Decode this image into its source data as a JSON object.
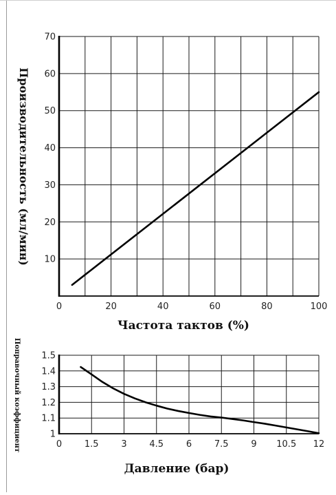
{
  "chart_data": [
    {
      "type": "line",
      "title": "",
      "xlabel": "Частота тактов (%)",
      "ylabel": "Производительность (мл/мин)",
      "xlim": [
        0,
        100
      ],
      "ylim": [
        0,
        70
      ],
      "xticks": [
        0,
        20,
        40,
        60,
        80,
        100
      ],
      "yticks": [
        10,
        20,
        30,
        40,
        50,
        60,
        70
      ],
      "grid": true,
      "series": [
        {
          "name": "",
          "x": [
            5,
            100
          ],
          "y": [
            3,
            55
          ]
        }
      ]
    },
    {
      "type": "line",
      "title": "",
      "xlabel": "Давление (бар)",
      "ylabel": "Поправочный коэффициент",
      "xlim": [
        0,
        12
      ],
      "ylim": [
        1.0,
        1.5
      ],
      "xticks": [
        0,
        1.5,
        3,
        4.5,
        6,
        7.5,
        9,
        10.5,
        12
      ],
      "yticks": [
        1.0,
        1.1,
        1.2,
        1.3,
        1.4,
        1.5
      ],
      "grid": true,
      "series": [
        {
          "name": "",
          "x": [
            1.0,
            1.5,
            2.0,
            2.5,
            3.0,
            3.5,
            4.0,
            4.5,
            5.0,
            5.5,
            6.0,
            6.5,
            7.0,
            7.5,
            8.0,
            8.5,
            9.0,
            9.5,
            10.0,
            10.5,
            11.0,
            11.5,
            12.0
          ],
          "y": [
            1.425,
            1.378,
            1.33,
            1.289,
            1.254,
            1.225,
            1.2,
            1.179,
            1.16,
            1.145,
            1.132,
            1.12,
            1.11,
            1.103,
            1.094,
            1.085,
            1.074,
            1.064,
            1.052,
            1.04,
            1.028,
            1.016,
            1.003
          ]
        }
      ]
    }
  ]
}
